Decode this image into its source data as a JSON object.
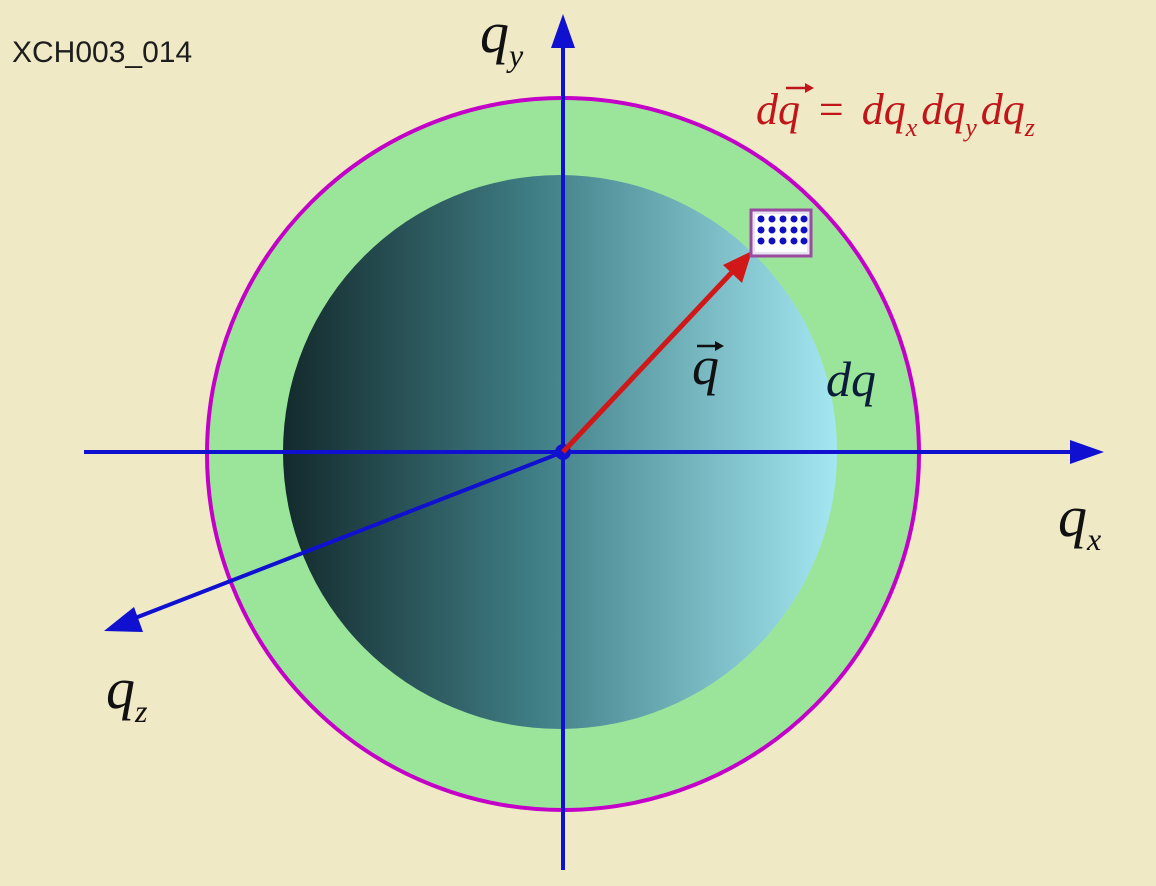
{
  "figure": {
    "code": "XCH003_014",
    "axes": {
      "x": {
        "base": "q",
        "sub": "x"
      },
      "y": {
        "base": "q",
        "sub": "y"
      },
      "z": {
        "base": "q",
        "sub": "z"
      }
    },
    "vector_label": "q",
    "shell_label": "dq",
    "formula": {
      "lhs": "dq",
      "eq": "=",
      "terms": [
        {
          "base": "dq",
          "sub": "x"
        },
        {
          "base": "dq",
          "sub": "y"
        },
        {
          "base": "dq",
          "sub": "z"
        }
      ]
    },
    "colors": {
      "background": "#efe9c6",
      "shell_fill": "#9be59a",
      "shell_outline": "#c400c8",
      "axis": "#1010d0",
      "vector": "#d01818",
      "sphere_dark": "#1d3d3d",
      "sphere_light": "#9ee3ee",
      "formula": "#c0161a"
    }
  }
}
